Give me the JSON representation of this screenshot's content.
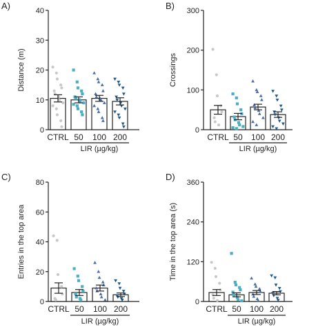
{
  "panel_colors": {
    "ctrl": "#c8c8c8",
    "g50": "#4aafc4",
    "g100": "#4a6ea8",
    "g200": "#1f5a8a",
    "bar_fill": "#ffffff",
    "axis": "#222222"
  },
  "marker_shapes": [
    "circle",
    "square",
    "triangle-up",
    "triangle-down"
  ],
  "chart_data": [
    {
      "panel_label": "A)",
      "type": "bar",
      "ylabel": "Distance (m)",
      "xlabel": "LIR (µg/kg)",
      "categories": [
        "CTRL",
        "50",
        "100",
        "200"
      ],
      "values": [
        10.5,
        10.0,
        10.5,
        9.5
      ],
      "sem": [
        1.2,
        1.0,
        1.0,
        1.2
      ],
      "yticks": [
        0,
        10,
        20,
        30,
        40
      ],
      "ylim": [
        0,
        40
      ],
      "points": [
        [
          21,
          19,
          17,
          15,
          14,
          13,
          12,
          11,
          10,
          9,
          8,
          7,
          5,
          3,
          1
        ],
        [
          20,
          16,
          14,
          13,
          12,
          11,
          10.5,
          10,
          9.5,
          9,
          8.5,
          8,
          7,
          6,
          5
        ],
        [
          19,
          17,
          16,
          15,
          13,
          12,
          11,
          10.5,
          10,
          9,
          8,
          7,
          6,
          4,
          3
        ],
        [
          17,
          16,
          15,
          14,
          12,
          11,
          10,
          9,
          8,
          7,
          6,
          5,
          4,
          2,
          1
        ]
      ]
    },
    {
      "panel_label": "B)",
      "type": "bar",
      "ylabel": "Crossings",
      "xlabel": "LIR (µg/kg)",
      "categories": [
        "CTRL",
        "50",
        "100",
        "200"
      ],
      "values": [
        50,
        33,
        57,
        38
      ],
      "sem": [
        11,
        8,
        7,
        7
      ],
      "yticks": [
        0,
        100,
        200,
        300
      ],
      "ylim": [
        0,
        300
      ],
      "points": [
        [
          202,
          138,
          85,
          60,
          45,
          30,
          20,
          12
        ],
        [
          90,
          80,
          65,
          50,
          40,
          32,
          25,
          18,
          12,
          8,
          5,
          3
        ],
        [
          122,
          100,
          95,
          85,
          75,
          62,
          55,
          48,
          40,
          30,
          20,
          12
        ],
        [
          97,
          85,
          75,
          60,
          50,
          45,
          38,
          30,
          22,
          15,
          8,
          3
        ]
      ]
    },
    {
      "panel_label": "C)",
      "type": "bar",
      "ylabel": "Entries in the top area",
      "xlabel": "LIR (µg/kg)",
      "categories": [
        "CTRL",
        "50",
        "100",
        "200"
      ],
      "values": [
        9,
        6,
        9,
        4.5
      ],
      "sem": [
        3.5,
        2,
        2,
        1.2
      ],
      "yticks": [
        0,
        20,
        40,
        60,
        80
      ],
      "ylim": [
        0,
        80
      ],
      "points": [
        [
          44,
          41,
          18,
          10,
          5,
          2,
          1
        ],
        [
          22,
          17,
          14,
          10,
          7,
          5,
          3,
          2,
          1
        ],
        [
          26,
          20,
          16,
          13,
          11,
          9,
          7,
          5,
          3,
          1
        ],
        [
          14,
          12,
          9,
          7,
          5,
          4,
          3,
          2,
          1
        ]
      ]
    },
    {
      "panel_label": "D)",
      "type": "bar",
      "ylabel": "Time in the top area (s)",
      "xlabel": "LIR (µg/kg)",
      "categories": [
        "CTRL",
        "50",
        "100",
        "200"
      ],
      "values": [
        27,
        20,
        27,
        25
      ],
      "sem": [
        9,
        6,
        6,
        5
      ],
      "yticks": [
        0,
        120,
        240,
        360
      ],
      "ylim": [
        0,
        360
      ],
      "points": [
        [
          118,
          100,
          75,
          55,
          35,
          20,
          10,
          3
        ],
        [
          145,
          58,
          50,
          42,
          35,
          28,
          20,
          12,
          5,
          2
        ],
        [
          70,
          52,
          45,
          38,
          30,
          22,
          15,
          8,
          3
        ],
        [
          78,
          72,
          50,
          40,
          30,
          25,
          18,
          10,
          4
        ]
      ]
    }
  ]
}
